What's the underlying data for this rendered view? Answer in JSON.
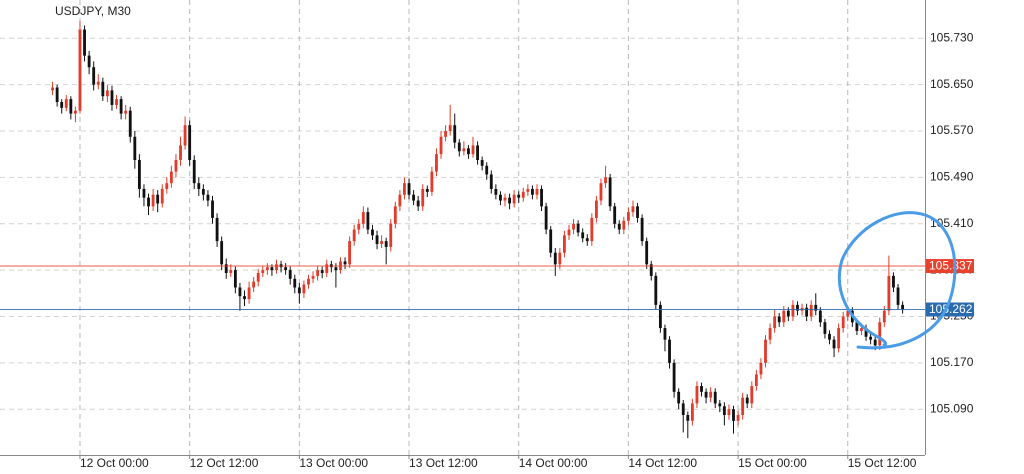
{
  "chart_data": {
    "type": "candlestick",
    "title": "USDJPY, M30",
    "up_color": "#e23b2a",
    "down_color": "#111111",
    "grid": true,
    "xlim": [
      -11.5,
      190.9
    ],
    "ylim": [
      105.011,
      105.796
    ],
    "xticks": [
      {
        "value": 6,
        "label": "12 Oct 00:00"
      },
      {
        "value": 30,
        "label": "12 Oct 12:00"
      },
      {
        "value": 54,
        "label": "13 Oct 00:00"
      },
      {
        "value": 78,
        "label": "13 Oct 12:00"
      },
      {
        "value": 102,
        "label": "14 Oct 00:00"
      },
      {
        "value": 126,
        "label": "14 Oct 12:00"
      },
      {
        "value": 150,
        "label": "15 Oct 00:00"
      },
      {
        "value": 174,
        "label": "15 Oct 12:00"
      }
    ],
    "yticks": [
      {
        "value": 105.09,
        "label": "105.090"
      },
      {
        "value": 105.17,
        "label": "105.170"
      },
      {
        "value": 105.25,
        "label": "105.250"
      },
      {
        "value": 105.33,
        "label": "105.330"
      },
      {
        "value": 105.41,
        "label": "105.410"
      },
      {
        "value": 105.49,
        "label": "105.490"
      },
      {
        "value": 105.57,
        "label": "105.570"
      },
      {
        "value": 105.65,
        "label": "105.650"
      },
      {
        "value": 105.73,
        "label": "105.730"
      }
    ],
    "price_lines": [
      {
        "value": 105.337,
        "color": "#e8412c"
      },
      {
        "value": 105.262,
        "color": "#2a6bb0"
      }
    ],
    "ohlc": [
      [
        105.64,
        105.655,
        105.632,
        105.645
      ],
      [
        105.645,
        105.65,
        105.612,
        105.62
      ],
      [
        105.62,
        105.625,
        105.6,
        105.61
      ],
      [
        105.61,
        105.632,
        105.604,
        105.625
      ],
      [
        105.625,
        105.63,
        105.59,
        105.6
      ],
      [
        105.6,
        105.612,
        105.585,
        105.605
      ],
      [
        105.605,
        105.76,
        105.6,
        105.745
      ],
      [
        105.745,
        105.752,
        105.69,
        105.7
      ],
      [
        105.7,
        105.708,
        105.668,
        105.68
      ],
      [
        105.68,
        105.69,
        105.64,
        105.65
      ],
      [
        105.65,
        105.668,
        105.642,
        105.655
      ],
      [
        105.655,
        105.662,
        105.622,
        105.63
      ],
      [
        105.63,
        105.65,
        105.62,
        105.64
      ],
      [
        105.64,
        105.648,
        105.605,
        105.615
      ],
      [
        105.615,
        105.632,
        105.608,
        105.625
      ],
      [
        105.625,
        105.63,
        105.59,
        105.6
      ],
      [
        105.6,
        105.615,
        105.59,
        105.605
      ],
      [
        105.605,
        105.612,
        105.55,
        105.56
      ],
      [
        105.56,
        105.57,
        105.505,
        105.52
      ],
      [
        105.52,
        105.53,
        105.455,
        105.47
      ],
      [
        105.47,
        105.478,
        105.44,
        105.455
      ],
      [
        105.455,
        105.462,
        105.425,
        105.44
      ],
      [
        105.44,
        105.47,
        105.432,
        105.46
      ],
      [
        105.46,
        105.468,
        105.43,
        105.445
      ],
      [
        105.445,
        105.478,
        105.438,
        105.47
      ],
      [
        105.47,
        105.49,
        105.462,
        105.48
      ],
      [
        105.48,
        105.51,
        105.472,
        105.5
      ],
      [
        105.5,
        105.53,
        105.49,
        105.52
      ],
      [
        105.52,
        105.56,
        105.51,
        105.545
      ],
      [
        105.545,
        105.595,
        105.538,
        105.58
      ],
      [
        105.58,
        105.588,
        105.51,
        105.52
      ],
      [
        105.52,
        105.528,
        105.47,
        105.48
      ],
      [
        105.48,
        105.49,
        105.458,
        105.47
      ],
      [
        105.47,
        105.478,
        105.45,
        105.46
      ],
      [
        105.46,
        105.468,
        105.44,
        105.45
      ],
      [
        105.45,
        105.458,
        105.41,
        105.42
      ],
      [
        105.42,
        105.428,
        105.37,
        105.38
      ],
      [
        105.38,
        105.388,
        105.33,
        105.34
      ],
      [
        105.34,
        105.35,
        105.315,
        105.325
      ],
      [
        105.325,
        105.34,
        105.318,
        105.33
      ],
      [
        105.33,
        105.336,
        105.29,
        105.3
      ],
      [
        105.3,
        105.308,
        105.26,
        105.285
      ],
      [
        105.285,
        105.295,
        105.268,
        105.28
      ],
      [
        105.28,
        105.31,
        105.272,
        105.3
      ],
      [
        105.3,
        105.318,
        105.292,
        105.31
      ],
      [
        105.31,
        105.332,
        105.302,
        105.325
      ],
      [
        105.325,
        105.338,
        105.318,
        105.33
      ],
      [
        105.33,
        105.342,
        105.322,
        105.335
      ],
      [
        105.335,
        105.34,
        105.32,
        105.33
      ],
      [
        105.33,
        105.348,
        105.324,
        105.34
      ],
      [
        105.34,
        105.346,
        105.326,
        105.335
      ],
      [
        105.335,
        105.342,
        105.322,
        105.33
      ],
      [
        105.33,
        105.336,
        105.305,
        105.315
      ],
      [
        105.315,
        105.322,
        105.29,
        105.3
      ],
      [
        105.3,
        105.308,
        105.272,
        105.29
      ],
      [
        105.29,
        105.312,
        105.282,
        105.305
      ],
      [
        105.305,
        105.322,
        105.298,
        105.315
      ],
      [
        105.315,
        105.328,
        105.308,
        105.32
      ],
      [
        105.32,
        105.338,
        105.312,
        105.33
      ],
      [
        105.33,
        105.336,
        105.316,
        105.325
      ],
      [
        105.325,
        105.348,
        105.318,
        105.34
      ],
      [
        105.34,
        105.346,
        105.326,
        105.335
      ],
      [
        105.335,
        105.342,
        105.3,
        105.33
      ],
      [
        105.33,
        105.352,
        105.324,
        105.345
      ],
      [
        105.345,
        105.352,
        105.332,
        105.34
      ],
      [
        105.34,
        105.388,
        105.334,
        105.38
      ],
      [
        105.38,
        105.408,
        105.372,
        105.4
      ],
      [
        105.4,
        105.418,
        105.392,
        105.41
      ],
      [
        105.41,
        105.44,
        105.402,
        105.43
      ],
      [
        105.43,
        105.438,
        105.392,
        105.4
      ],
      [
        105.4,
        105.408,
        105.382,
        105.39
      ],
      [
        105.39,
        105.398,
        105.366,
        105.375
      ],
      [
        105.375,
        105.39,
        105.368,
        105.38
      ],
      [
        105.38,
        105.386,
        105.34,
        105.37
      ],
      [
        105.37,
        105.418,
        105.362,
        105.41
      ],
      [
        105.41,
        105.448,
        105.402,
        105.44
      ],
      [
        105.44,
        105.468,
        105.432,
        105.46
      ],
      [
        105.46,
        105.49,
        105.452,
        105.48
      ],
      [
        105.48,
        105.488,
        105.452,
        105.46
      ],
      [
        105.46,
        105.468,
        105.442,
        105.45
      ],
      [
        105.45,
        105.458,
        105.432,
        105.44
      ],
      [
        105.44,
        105.478,
        105.432,
        105.47
      ],
      [
        105.47,
        105.476,
        105.456,
        105.465
      ],
      [
        105.465,
        105.508,
        105.458,
        105.5
      ],
      [
        105.5,
        105.54,
        105.492,
        105.53
      ],
      [
        105.53,
        105.57,
        105.522,
        105.56
      ],
      [
        105.56,
        105.58,
        105.552,
        105.57
      ],
      [
        105.57,
        105.615,
        105.562,
        105.58
      ],
      [
        105.58,
        105.6,
        105.54,
        105.55
      ],
      [
        105.55,
        105.556,
        105.526,
        105.535
      ],
      [
        105.535,
        105.552,
        105.528,
        105.54
      ],
      [
        105.54,
        105.546,
        105.522,
        105.53
      ],
      [
        105.53,
        105.56,
        105.524,
        105.545
      ],
      [
        105.545,
        105.552,
        105.512,
        105.52
      ],
      [
        105.52,
        105.526,
        105.502,
        105.51
      ],
      [
        105.51,
        105.516,
        105.486,
        105.495
      ],
      [
        105.495,
        105.502,
        105.462,
        105.47
      ],
      [
        105.47,
        105.478,
        105.452,
        105.46
      ],
      [
        105.46,
        105.466,
        105.442,
        105.45
      ],
      [
        105.45,
        105.462,
        105.44,
        105.455
      ],
      [
        105.455,
        105.462,
        105.435,
        105.445
      ],
      [
        105.445,
        105.468,
        105.438,
        105.46
      ],
      [
        105.46,
        105.466,
        105.446,
        105.455
      ],
      [
        105.455,
        105.472,
        105.448,
        105.465
      ],
      [
        105.465,
        105.478,
        105.458,
        105.47
      ],
      [
        105.47,
        105.476,
        105.452,
        105.46
      ],
      [
        105.46,
        105.478,
        105.452,
        105.47
      ],
      [
        105.47,
        105.476,
        105.432,
        105.44
      ],
      [
        105.44,
        105.446,
        105.392,
        105.4
      ],
      [
        105.4,
        105.406,
        105.352,
        105.36
      ],
      [
        105.36,
        105.368,
        105.32,
        105.34
      ],
      [
        105.34,
        105.368,
        105.332,
        105.36
      ],
      [
        105.36,
        105.398,
        105.352,
        105.39
      ],
      [
        105.39,
        105.408,
        105.382,
        105.4
      ],
      [
        105.4,
        105.418,
        105.392,
        105.41
      ],
      [
        105.41,
        105.416,
        105.388,
        105.395
      ],
      [
        105.395,
        105.402,
        105.378,
        105.385
      ],
      [
        105.385,
        105.392,
        105.372,
        105.38
      ],
      [
        105.38,
        105.428,
        105.372,
        105.42
      ],
      [
        105.42,
        105.458,
        105.412,
        105.45
      ],
      [
        105.45,
        105.488,
        105.442,
        105.48
      ],
      [
        105.48,
        105.51,
        105.472,
        105.49
      ],
      [
        105.49,
        105.496,
        105.432,
        105.44
      ],
      [
        105.44,
        105.446,
        105.402,
        105.41
      ],
      [
        105.41,
        105.416,
        105.392,
        105.4
      ],
      [
        105.4,
        105.422,
        105.392,
        105.415
      ],
      [
        105.415,
        105.438,
        105.408,
        105.43
      ],
      [
        105.43,
        105.45,
        105.422,
        105.44
      ],
      [
        105.44,
        105.446,
        105.412,
        105.42
      ],
      [
        105.42,
        105.426,
        105.372,
        105.38
      ],
      [
        105.38,
        105.386,
        105.332,
        105.34
      ],
      [
        105.34,
        105.346,
        105.312,
        105.32
      ],
      [
        105.32,
        105.326,
        105.262,
        105.27
      ],
      [
        105.27,
        105.276,
        105.222,
        105.23
      ],
      [
        105.23,
        105.236,
        105.19,
        105.21
      ],
      [
        105.21,
        105.216,
        105.16,
        105.17
      ],
      [
        105.17,
        105.176,
        105.11,
        105.12
      ],
      [
        105.12,
        105.126,
        105.09,
        105.1
      ],
      [
        105.1,
        105.106,
        105.05,
        105.08
      ],
      [
        105.08,
        105.086,
        105.04,
        105.07
      ],
      [
        105.07,
        105.108,
        105.062,
        105.1
      ],
      [
        105.1,
        105.138,
        105.092,
        105.13
      ],
      [
        105.13,
        105.136,
        105.112,
        105.12
      ],
      [
        105.12,
        105.126,
        105.1,
        105.11
      ],
      [
        105.11,
        105.128,
        105.102,
        105.12
      ],
      [
        105.12,
        105.126,
        105.092,
        105.1
      ],
      [
        105.1,
        105.106,
        105.085,
        105.095
      ],
      [
        105.095,
        105.102,
        105.062,
        105.08
      ],
      [
        105.08,
        105.098,
        105.072,
        105.09
      ],
      [
        105.09,
        105.096,
        105.048,
        105.07
      ],
      [
        105.07,
        105.088,
        105.062,
        105.08
      ],
      [
        105.08,
        105.118,
        105.072,
        105.11
      ],
      [
        105.11,
        105.116,
        105.092,
        105.1
      ],
      [
        105.1,
        105.138,
        105.092,
        105.13
      ],
      [
        105.13,
        105.158,
        105.122,
        105.15
      ],
      [
        105.15,
        105.178,
        105.142,
        105.17
      ],
      [
        105.17,
        105.218,
        105.162,
        105.21
      ],
      [
        105.21,
        105.238,
        105.202,
        105.23
      ],
      [
        105.23,
        105.262,
        105.222,
        105.25
      ],
      [
        105.25,
        105.256,
        105.232,
        105.24
      ],
      [
        105.24,
        105.268,
        105.232,
        105.26
      ],
      [
        105.26,
        105.266,
        105.242,
        105.25
      ],
      [
        105.25,
        105.278,
        105.242,
        105.27
      ],
      [
        105.27,
        105.276,
        105.252,
        105.26
      ],
      [
        105.26,
        105.272,
        105.252,
        105.265
      ],
      [
        105.265,
        105.272,
        105.242,
        105.25
      ],
      [
        105.25,
        105.278,
        105.242,
        105.27
      ],
      [
        105.27,
        105.29,
        105.252,
        105.26
      ],
      [
        105.26,
        105.266,
        105.232,
        105.24
      ],
      [
        105.24,
        105.246,
        105.212,
        105.22
      ],
      [
        105.22,
        105.226,
        105.202,
        105.21
      ],
      [
        105.21,
        105.216,
        105.18,
        105.195
      ],
      [
        105.195,
        105.238,
        105.188,
        105.23
      ],
      [
        105.23,
        105.258,
        105.222,
        105.25
      ],
      [
        105.25,
        105.268,
        105.242,
        105.26
      ],
      [
        105.26,
        105.266,
        105.232,
        105.24
      ],
      [
        105.24,
        105.246,
        105.218,
        105.225
      ],
      [
        105.225,
        105.238,
        105.218,
        105.23
      ],
      [
        105.23,
        105.236,
        105.208,
        105.215
      ],
      [
        105.215,
        105.222,
        105.202,
        105.21
      ],
      [
        105.21,
        105.216,
        105.192,
        105.2
      ],
      [
        105.2,
        105.248,
        105.192,
        105.24
      ],
      [
        105.24,
        105.268,
        105.232,
        105.26
      ],
      [
        105.26,
        105.355,
        105.252,
        105.32
      ],
      [
        105.32,
        105.326,
        105.292,
        105.3
      ],
      [
        105.3,
        105.306,
        105.262,
        105.27
      ],
      [
        105.27,
        105.276,
        105.255,
        105.262
      ]
    ]
  }
}
